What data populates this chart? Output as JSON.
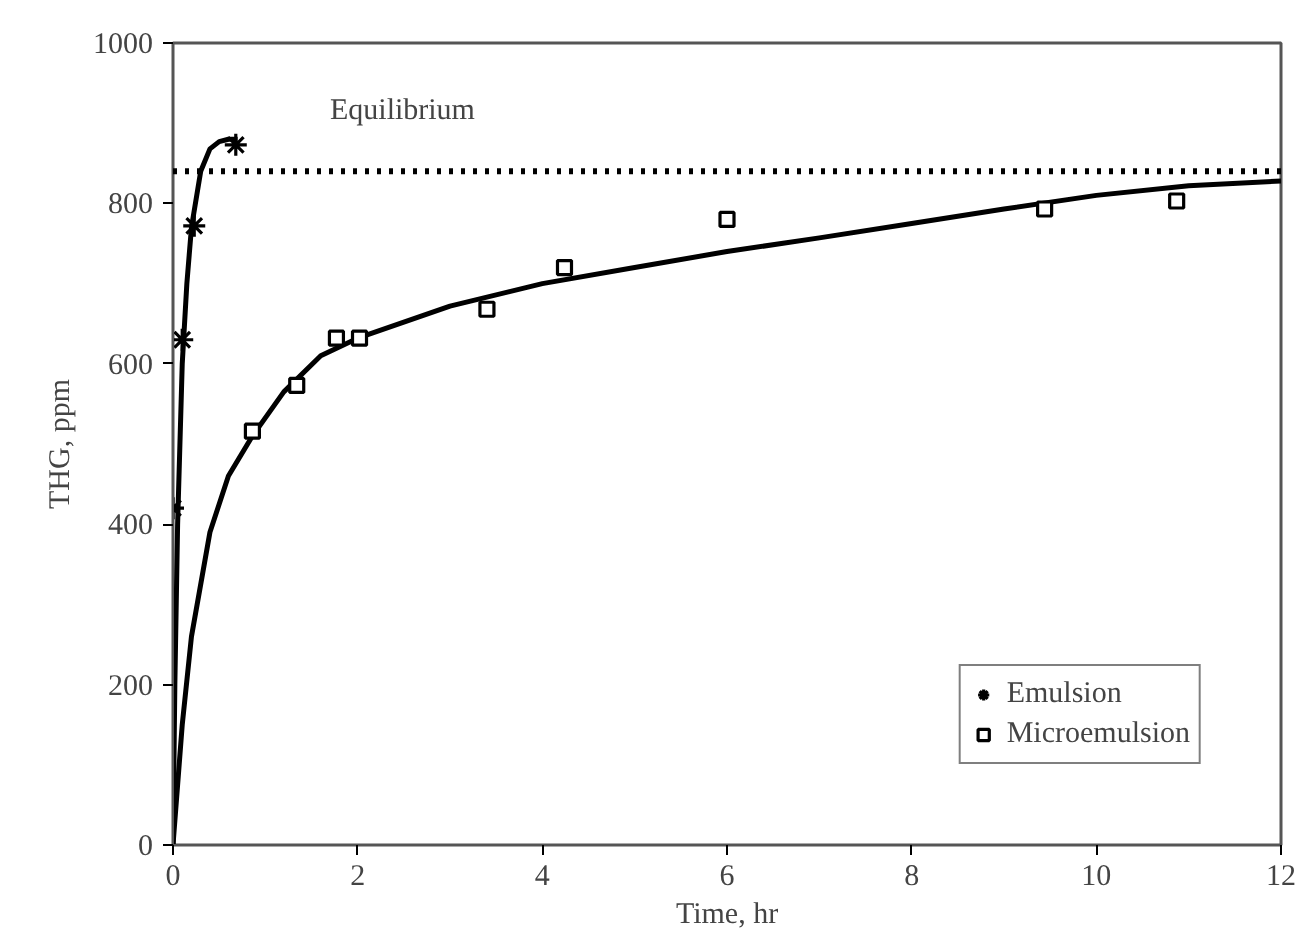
{
  "chart_data": {
    "type": "scatter",
    "xlabel": "Time, hr",
    "ylabel": "THG, ppm",
    "xlim": [
      0,
      12
    ],
    "ylim": [
      0,
      1000
    ],
    "xticks": [
      0,
      2,
      4,
      6,
      8,
      10,
      12
    ],
    "yticks": [
      0,
      200,
      400,
      600,
      800,
      1000
    ],
    "grid": false,
    "legend": "bottom right",
    "series": [
      {
        "name": "Emulsion",
        "marker": "cross",
        "color": "#000000",
        "x": [
          0,
          0.1,
          0.23,
          0.68
        ],
        "values": [
          420,
          630,
          772,
          873
        ]
      },
      {
        "name": "Microemulsion",
        "marker": "square",
        "color": "#000000",
        "x": [
          0.86,
          1.34,
          1.77,
          2.02,
          3.4,
          4.24,
          6.0,
          9.44,
          10.87
        ],
        "values": [
          516,
          573,
          632,
          632,
          668,
          720,
          780,
          793,
          803
        ]
      },
      {
        "type": "line",
        "color": "#000000",
        "x": [
          0,
          0.02,
          0.05,
          0.1,
          0.15,
          0.2,
          0.3,
          0.4,
          0.5,
          0.6,
          0.7
        ],
        "values": [
          0,
          200,
          400,
          600,
          700,
          770,
          840,
          868,
          877,
          880,
          880
        ]
      },
      {
        "type": "line",
        "color": "#000000",
        "x": [
          0,
          0.1,
          0.2,
          0.4,
          0.6,
          0.86,
          1.2,
          1.6,
          2,
          3,
          4,
          5,
          6,
          7,
          8,
          9,
          10,
          11,
          12
        ],
        "values": [
          0,
          150,
          260,
          390,
          460,
          510,
          565,
          610,
          632,
          672,
          700,
          720,
          740,
          757,
          775,
          793,
          810,
          822,
          828
        ]
      }
    ],
    "ref_lines": [
      {
        "axis": "y",
        "value": 840,
        "label": "Equilibrium",
        "color": "#000000",
        "line_style": "dotted"
      }
    ]
  }
}
